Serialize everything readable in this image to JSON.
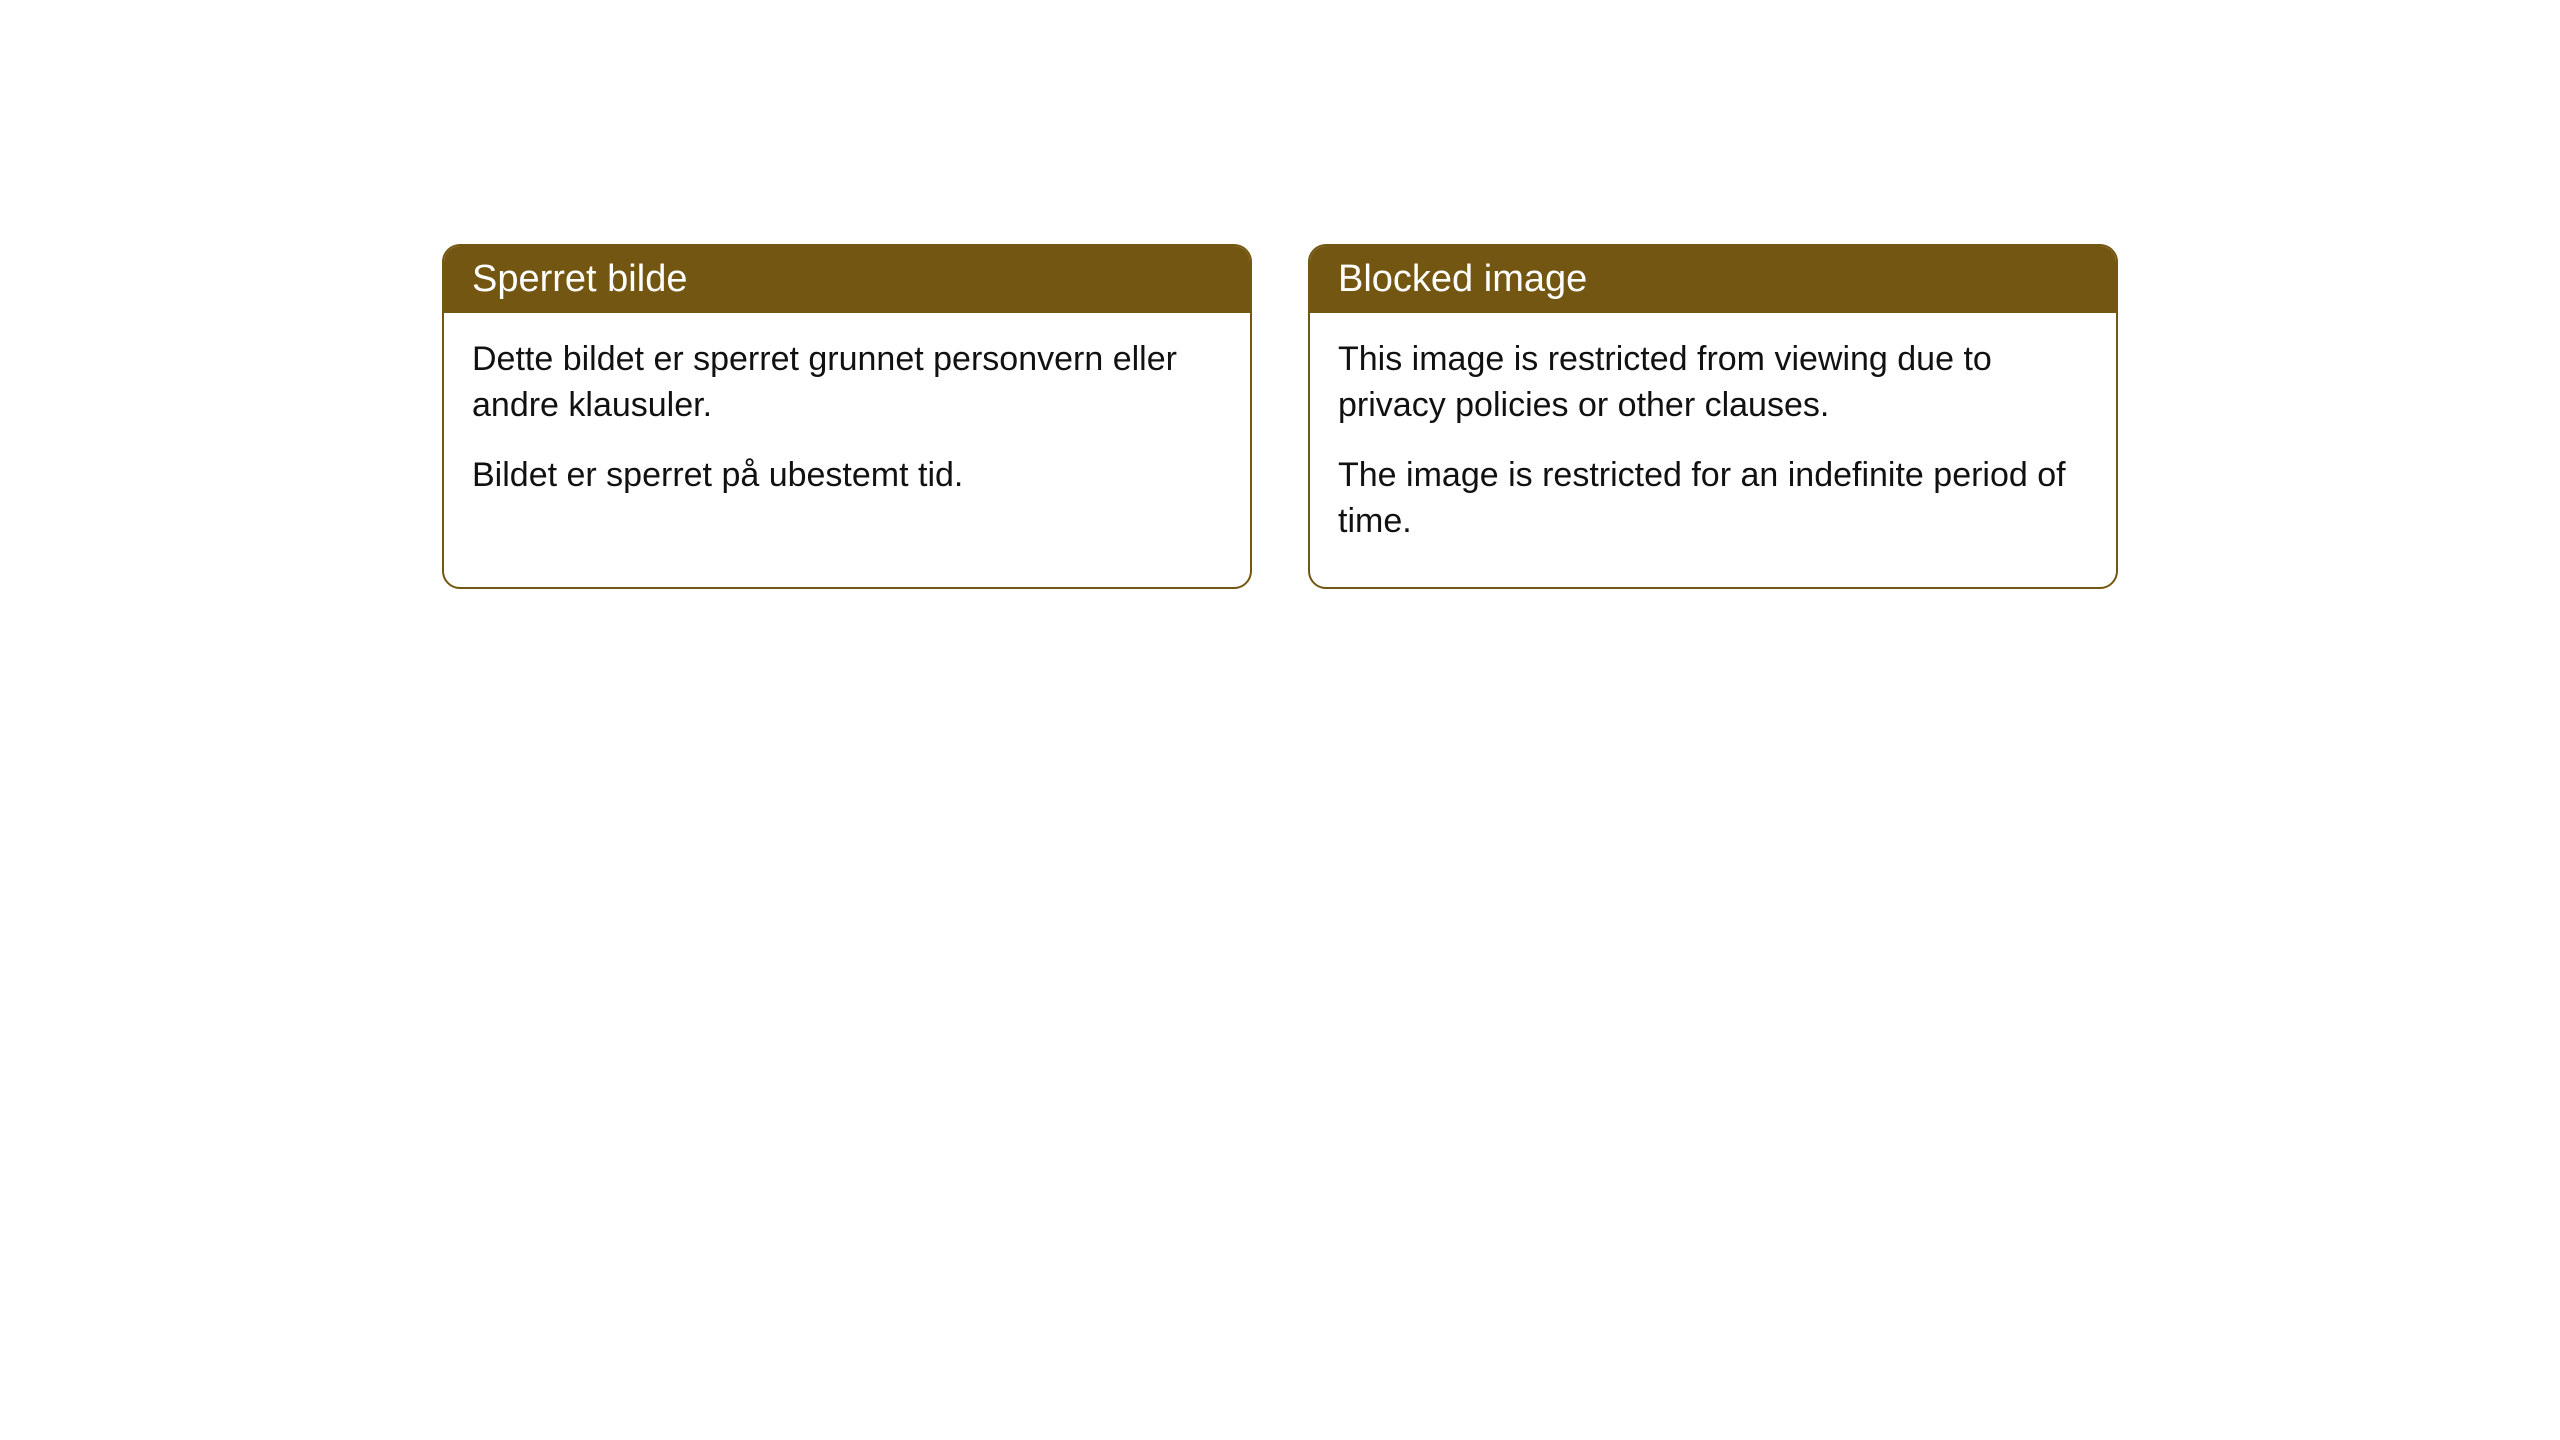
{
  "cards": [
    {
      "header": "Sperret bilde",
      "paragraph1": "Dette bildet er sperret grunnet personvern eller andre klausuler.",
      "paragraph2": "Bildet er sperret på ubestemt tid."
    },
    {
      "header": "Blocked image",
      "paragraph1": "This image is restricted from viewing due to privacy policies or other clauses.",
      "paragraph2": "The image is restricted for an indefinite period of time."
    }
  ],
  "styling": {
    "header_bg_color": "#735611",
    "header_text_color": "#ffffff",
    "border_color": "#735611",
    "body_bg_color": "#ffffff",
    "body_text_color": "#111111",
    "border_radius": 18,
    "header_font_size": 38,
    "body_font_size": 34
  }
}
